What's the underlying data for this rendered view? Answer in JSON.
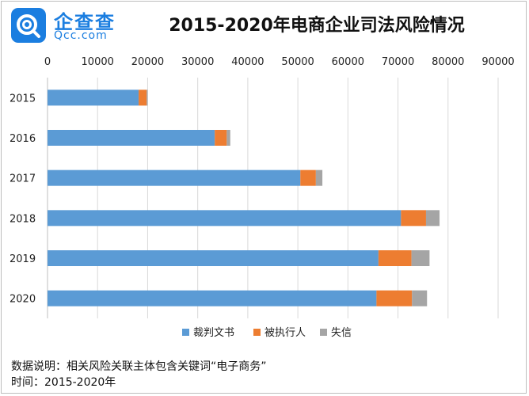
{
  "brand": {
    "name_cn": "企查查",
    "name_en": "Qcc.com",
    "logo_icon": "qcc-logo-icon",
    "color": "#1b7ee0"
  },
  "chart_data": {
    "type": "bar",
    "orientation": "horizontal",
    "stacked": true,
    "title": "2015-2020年电商企业司法风险情况",
    "categories": [
      "2015",
      "2016",
      "2017",
      "2018",
      "2019",
      "2020"
    ],
    "series": [
      {
        "name": "裁判文书",
        "color": "#5b9bd5",
        "values": [
          18200,
          33400,
          50500,
          70600,
          66100,
          65700
        ]
      },
      {
        "name": "被执行人",
        "color": "#ed7d31",
        "values": [
          1600,
          2400,
          3100,
          5000,
          6600,
          7100
        ]
      },
      {
        "name": "失信",
        "color": "#a5a5a5",
        "values": [
          200,
          700,
          1300,
          2700,
          3600,
          3000
        ]
      }
    ],
    "xlim": [
      0,
      90000
    ],
    "xticks": [
      "0",
      "10000",
      "20000",
      "30000",
      "40000",
      "50000",
      "60000",
      "70000",
      "80000",
      "90000"
    ],
    "grid": "vertical",
    "axis_position": "top",
    "legend_position": "bottom"
  },
  "footnotes": {
    "description": "数据说明：相关风险关联主体包含关键词“电子商务”",
    "period": "时间：2015-2020年"
  }
}
